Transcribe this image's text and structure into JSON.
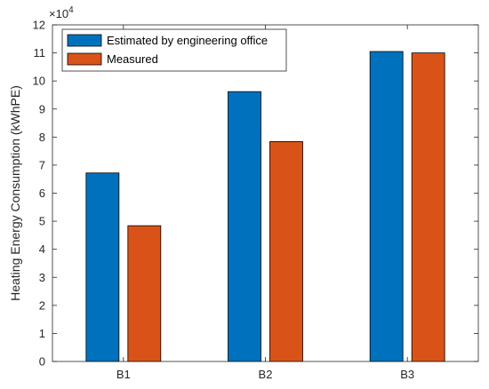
{
  "chart_data": {
    "type": "bar",
    "categories": [
      "B1",
      "B2",
      "B3"
    ],
    "series": [
      {
        "name": "Estimated by engineering office",
        "values": [
          67200,
          96200,
          110500
        ],
        "color": "#0072BD"
      },
      {
        "name": "Measured",
        "values": [
          48400,
          78400,
          110000
        ],
        "color": "#D95319"
      }
    ],
    "ylabel": "Heating Energy Consumption (kWhPE)",
    "xlabel": "",
    "ylim": [
      0,
      120000
    ],
    "y_ticks": [
      0,
      1,
      2,
      3,
      4,
      5,
      6,
      7,
      8,
      9,
      10,
      11,
      12
    ],
    "y_exponent": {
      "base": "×10",
      "power": "4"
    },
    "grid": false,
    "legend_position": "top-left"
  }
}
